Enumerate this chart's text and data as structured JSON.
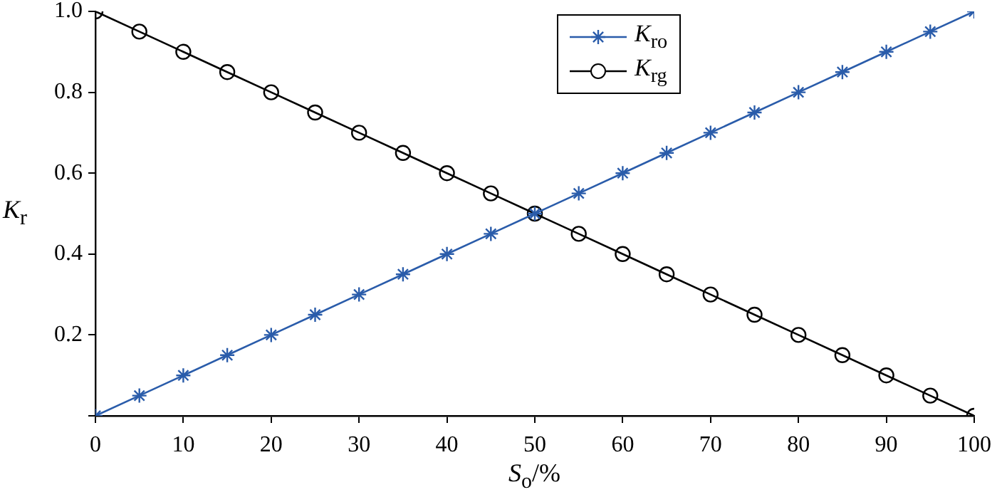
{
  "chart_data": {
    "type": "line",
    "xlabel": "S$_{o}$/%",
    "ylabel": "K$_{r}$",
    "x": [
      0,
      5,
      10,
      15,
      20,
      25,
      30,
      35,
      40,
      45,
      50,
      55,
      60,
      65,
      70,
      75,
      80,
      85,
      90,
      95,
      100
    ],
    "series": [
      {
        "name": "K$_{ro}$",
        "color": "#2a5caa",
        "marker": "cross",
        "values": [
          0,
          0.05,
          0.1,
          0.15,
          0.2,
          0.25,
          0.3,
          0.35,
          0.4,
          0.45,
          0.5,
          0.55,
          0.6,
          0.65,
          0.7,
          0.75,
          0.8,
          0.85,
          0.9,
          0.95,
          1
        ]
      },
      {
        "name": "K$_{rg}$",
        "color": "#000000",
        "marker": "circle",
        "values": [
          1,
          0.95,
          0.9,
          0.85,
          0.8,
          0.75,
          0.7,
          0.65,
          0.6,
          0.55,
          0.5,
          0.45,
          0.4,
          0.35,
          0.3,
          0.25,
          0.2,
          0.15,
          0.1,
          0.05,
          0
        ]
      }
    ],
    "xlim": [
      0,
      100
    ],
    "xticks": [
      0,
      10,
      20,
      30,
      40,
      50,
      60,
      70,
      80,
      90,
      100
    ],
    "ylim": [
      0,
      1
    ],
    "yticks": [
      {
        "value": 0,
        "label": null
      },
      0.2,
      0.4,
      0.6,
      0.8,
      {
        "value": 1,
        "label": "1.0"
      }
    ],
    "grid": false,
    "legend": "top"
  }
}
